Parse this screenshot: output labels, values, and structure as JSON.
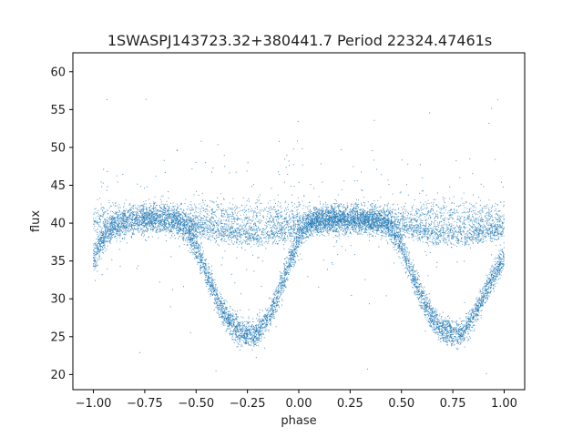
{
  "chart_data": {
    "type": "scatter",
    "title": "1SWASPJ143723.32+380441.7 Period 22324.47461s",
    "xlabel": "phase",
    "ylabel": "flux",
    "xlim": [
      -1.1,
      1.1
    ],
    "ylim": [
      18,
      62.5
    ],
    "xticks": [
      -1.0,
      -0.75,
      -0.5,
      -0.25,
      0.0,
      0.25,
      0.5,
      0.75,
      1.0
    ],
    "xtick_labels": [
      "−1.00",
      "−0.75",
      "−0.50",
      "−0.25",
      "0.00",
      "0.25",
      "0.50",
      "0.75",
      "1.00"
    ],
    "yticks": [
      20,
      25,
      30,
      35,
      40,
      45,
      50,
      55,
      60
    ],
    "ytick_labels": [
      "20",
      "25",
      "30",
      "35",
      "40",
      "45",
      "50",
      "55",
      "60"
    ],
    "point_color": "#1f77b4",
    "grid": false,
    "series": [
      {
        "description_of_shape": "folded light curve; baseline flux ~40.5 with deep primary eclipse near phase -0.23/0.77 to ~25.5 and a secondary branch near 38.5",
        "values": {
          "primary_curve": [
            [
              -1.0,
              35.5
            ],
            [
              -0.95,
              38.0
            ],
            [
              -0.9,
              39.5
            ],
            [
              -0.8,
              40.5
            ],
            [
              -0.7,
              40.6
            ],
            [
              -0.6,
              40.3
            ],
            [
              -0.55,
              39.3
            ],
            [
              -0.5,
              37.0
            ],
            [
              -0.45,
              33.5
            ],
            [
              -0.4,
              30.0
            ],
            [
              -0.35,
              27.5
            ],
            [
              -0.3,
              26.0
            ],
            [
              -0.25,
              25.4
            ],
            [
              -0.2,
              25.6
            ],
            [
              -0.15,
              27.5
            ],
            [
              -0.1,
              30.5
            ],
            [
              -0.05,
              34.5
            ],
            [
              0.0,
              38.0
            ],
            [
              0.05,
              40.0
            ],
            [
              0.1,
              40.6
            ],
            [
              0.2,
              40.7
            ],
            [
              0.3,
              40.6
            ],
            [
              0.4,
              40.3
            ],
            [
              0.45,
              39.3
            ],
            [
              0.5,
              37.0
            ],
            [
              0.55,
              33.5
            ],
            [
              0.6,
              30.0
            ],
            [
              0.65,
              27.5
            ],
            [
              0.7,
              26.0
            ],
            [
              0.75,
              25.4
            ],
            [
              0.8,
              25.6
            ],
            [
              0.85,
              27.5
            ],
            [
              0.9,
              30.5
            ],
            [
              0.95,
              33.0
            ],
            [
              1.0,
              35.5
            ]
          ],
          "secondary_curve": [
            [
              -0.55,
              40.0
            ],
            [
              -0.45,
              39.2
            ],
            [
              -0.35,
              38.6
            ],
            [
              -0.25,
              38.3
            ],
            [
              -0.15,
              38.5
            ],
            [
              -0.05,
              39.0
            ],
            [
              0.05,
              40.0
            ],
            [
              0.45,
              40.0
            ],
            [
              0.55,
              39.2
            ],
            [
              0.65,
              38.6
            ],
            [
              0.75,
              38.3
            ],
            [
              0.85,
              38.5
            ],
            [
              0.95,
              39.0
            ],
            [
              1.0,
              39.3
            ]
          ],
          "baseline_upper": [
            [
              -1.0,
              40.5
            ],
            [
              -0.5,
              40.8
            ],
            [
              0.0,
              40.7
            ],
            [
              0.5,
              40.8
            ],
            [
              1.0,
              40.6
            ]
          ]
        }
      }
    ]
  }
}
